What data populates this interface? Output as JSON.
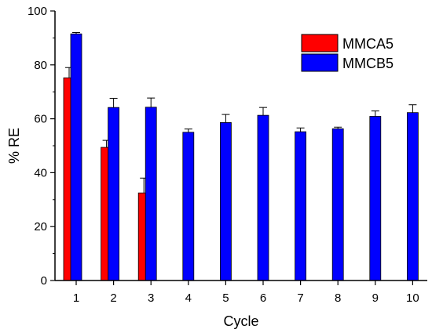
{
  "chart_data": {
    "type": "bar",
    "title": "",
    "xlabel": "Cycle",
    "ylabel": "% RE",
    "categories": [
      "1",
      "2",
      "3",
      "4",
      "5",
      "6",
      "7",
      "8",
      "9",
      "10"
    ],
    "ylim": [
      0,
      100
    ],
    "yticks": [
      "0",
      "20",
      "40",
      "60",
      "80",
      "100"
    ],
    "grid": false,
    "legend_position": "top-right",
    "series": [
      {
        "name": "MMCA5",
        "color": "#ff0000",
        "values": [
          75.2,
          49.4,
          32.5,
          null,
          null,
          null,
          null,
          null,
          null,
          null
        ],
        "errors": [
          3.8,
          2.6,
          5.5,
          null,
          null,
          null,
          null,
          null,
          null,
          null
        ]
      },
      {
        "name": "MMCB5",
        "color": "#0000ff",
        "values": [
          91.5,
          64.2,
          64.3,
          55.0,
          58.6,
          61.3,
          55.2,
          56.3,
          60.9,
          62.3
        ],
        "errors": [
          0.5,
          3.4,
          3.4,
          1.2,
          3.0,
          2.9,
          1.4,
          0.6,
          2.0,
          2.9
        ]
      }
    ]
  }
}
